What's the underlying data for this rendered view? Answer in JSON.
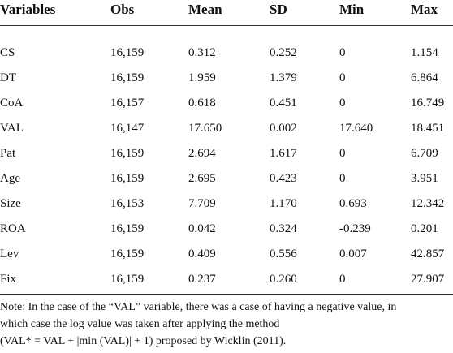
{
  "table": {
    "header": [
      "Variables",
      "Obs",
      "Mean",
      "SD",
      "Min",
      "Max"
    ],
    "rows": [
      [
        "CS",
        "16,159",
        "0.312",
        "0.252",
        "0",
        "1.154"
      ],
      [
        "DT",
        "16,159",
        "1.959",
        "1.379",
        "0",
        "6.864"
      ],
      [
        "CoA",
        "16,157",
        "0.618",
        "0.451",
        "0",
        "16.749"
      ],
      [
        "VAL",
        "16,147",
        "17.650",
        "0.002",
        "17.640",
        "18.451"
      ],
      [
        "Pat",
        "16,159",
        "2.694",
        "1.617",
        "0",
        "6.709"
      ],
      [
        "Age",
        "16,159",
        "2.695",
        "0.423",
        "0",
        "3.951"
      ],
      [
        "Size",
        "16,153",
        "7.709",
        "1.170",
        "0.693",
        "12.342"
      ],
      [
        "ROA",
        "16,159",
        "0.042",
        "0.324",
        "-0.239",
        "0.201"
      ],
      [
        "Lev",
        "16,159",
        "0.409",
        "0.556",
        "0.007",
        "42.857"
      ],
      [
        "Fix",
        "16,159",
        "0.237",
        "0.260",
        "0",
        "27.907"
      ]
    ],
    "note": [
      "Note: In the case of the “VAL” variable, there was a case of having a negative value, in",
      "which case the log value was taken after applying the method",
      "(VAL* = VAL + |min (VAL)| + 1) proposed by Wicklin (2011)."
    ]
  }
}
